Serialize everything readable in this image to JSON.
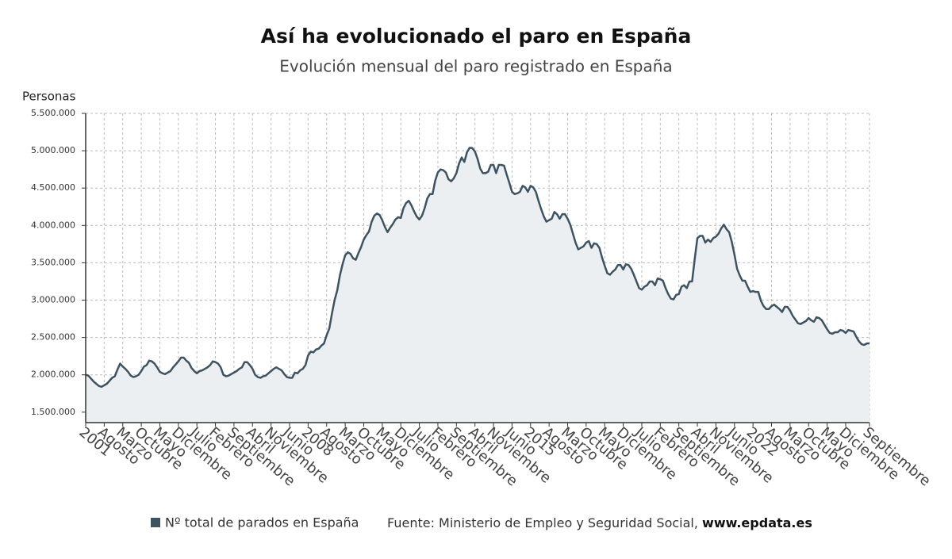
{
  "chart_data": {
    "type": "line",
    "title": "Así ha evolucionado el paro en España",
    "subtitle": "Evolución mensual del paro registrado en España",
    "y_label": "Personas",
    "source": "Fuente: Ministerio de Empleo y Seguridad Social,",
    "source_link": "www.epdata.es",
    "grid": true,
    "ylim": [
      1360000,
      5500000
    ],
    "yticks": [
      {
        "value": 1500000,
        "label": "1.500.000"
      },
      {
        "value": 2000000,
        "label": "2.000.000"
      },
      {
        "value": 2500000,
        "label": "2.500.000"
      },
      {
        "value": 3000000,
        "label": "3.000.000"
      },
      {
        "value": 3500000,
        "label": "3.500.000"
      },
      {
        "value": 4000000,
        "label": "4.000.000"
      },
      {
        "value": 4500000,
        "label": "4.500.000"
      },
      {
        "value": 5000000,
        "label": "5.000.000"
      },
      {
        "value": 5500000,
        "label": "5.500.000"
      }
    ],
    "categories": [
      "2001",
      null,
      null,
      null,
      null,
      null,
      null,
      "Agosto",
      null,
      null,
      null,
      null,
      null,
      null,
      "Marzo",
      null,
      null,
      null,
      null,
      null,
      null,
      "Octubre",
      null,
      null,
      null,
      null,
      null,
      null,
      "Mayo",
      null,
      null,
      null,
      null,
      null,
      null,
      "Diciembre",
      null,
      null,
      null,
      null,
      null,
      null,
      "Julio",
      null,
      null,
      null,
      null,
      null,
      null,
      "Febrero",
      null,
      null,
      null,
      null,
      null,
      null,
      "Septiembre",
      null,
      null,
      null,
      null,
      null,
      null,
      "Abril",
      null,
      null,
      null,
      null,
      null,
      null,
      "Noviembre",
      null,
      null,
      null,
      null,
      null,
      null,
      "Junio",
      null,
      null,
      null,
      null,
      null,
      null,
      "2008",
      null,
      null,
      null,
      null,
      null,
      null,
      "Agosto",
      null,
      null,
      null,
      null,
      null,
      null,
      "Marzo",
      null,
      null,
      null,
      null,
      null,
      null,
      "Octubre",
      null,
      null,
      null,
      null,
      null,
      null,
      "Mayo",
      null,
      null,
      null,
      null,
      null,
      null,
      "Diciembre",
      null,
      null,
      null,
      null,
      null,
      null,
      "Julio",
      null,
      null,
      null,
      null,
      null,
      null,
      "Febrero",
      null,
      null,
      null,
      null,
      null,
      null,
      "Septiembre",
      null,
      null,
      null,
      null,
      null,
      null,
      "Abril",
      null,
      null,
      null,
      null,
      null,
      null,
      "Noviembre",
      null,
      null,
      null,
      null,
      null,
      null,
      "Junio",
      null,
      null,
      null,
      null,
      null,
      null,
      "2015",
      null,
      null,
      null,
      null,
      null,
      null,
      "Agosto",
      null,
      null,
      null,
      null,
      null,
      null,
      "Marzo",
      null,
      null,
      null,
      null,
      null,
      null,
      "Octubre",
      null,
      null,
      null,
      null,
      null,
      null,
      "Mayo",
      null,
      null,
      null,
      null,
      null,
      null,
      "Diciembre",
      null,
      null,
      null,
      null,
      null,
      null,
      "Julio",
      null,
      null,
      null,
      null,
      null,
      null,
      "Febrero",
      null,
      null,
      null,
      null,
      null,
      null,
      "Septiembre",
      null,
      null,
      null,
      null,
      null,
      null,
      "Abril",
      null,
      null,
      null,
      null,
      null,
      null,
      "Noviembre",
      null,
      null,
      null,
      null,
      null,
      null,
      "Junio",
      null,
      null,
      null,
      null,
      null,
      null,
      "2022",
      null,
      null,
      null,
      null,
      null,
      null,
      "Agosto",
      null,
      null,
      null,
      null,
      null,
      null,
      "Marzo",
      null,
      null,
      null,
      null,
      null,
      null,
      "Octubre",
      null,
      null,
      null,
      null,
      null,
      null,
      "Mayo",
      null,
      null,
      null,
      null,
      null,
      null,
      "Diciembre",
      null,
      null,
      null,
      null,
      null,
      null,
      null,
      null,
      "Septiembre"
    ],
    "series": [
      {
        "name": "Nº total de parados en España",
        "color": "#3d5361",
        "values": [
          2000000,
          1990000,
          1950000,
          1910000,
          1880000,
          1850000,
          1840000,
          1860000,
          1880000,
          1920000,
          1960000,
          1980000,
          2070000,
          2150000,
          2110000,
          2080000,
          2040000,
          1990000,
          1970000,
          1980000,
          2000000,
          2050000,
          2110000,
          2130000,
          2190000,
          2180000,
          2150000,
          2100000,
          2040000,
          2020000,
          2010000,
          2030000,
          2050000,
          2100000,
          2140000,
          2180000,
          2230000,
          2230000,
          2190000,
          2160000,
          2090000,
          2050000,
          2020000,
          2050000,
          2060000,
          2080000,
          2100000,
          2130000,
          2180000,
          2170000,
          2150000,
          2100000,
          2000000,
          1980000,
          1990000,
          2010000,
          2030000,
          2050000,
          2080000,
          2100000,
          2170000,
          2170000,
          2130000,
          2080000,
          2000000,
          1970000,
          1960000,
          1980000,
          1990000,
          2020000,
          2050000,
          2080000,
          2100000,
          2080000,
          2060000,
          2010000,
          1970000,
          1960000,
          1960000,
          2030000,
          2020000,
          2060000,
          2080000,
          2130000,
          2260000,
          2310000,
          2300000,
          2340000,
          2350000,
          2390000,
          2420000,
          2530000,
          2620000,
          2820000,
          3000000,
          3130000,
          3330000,
          3480000,
          3600000,
          3640000,
          3620000,
          3560000,
          3540000,
          3630000,
          3710000,
          3810000,
          3870000,
          3920000,
          4050000,
          4130000,
          4160000,
          4140000,
          4070000,
          3980000,
          3910000,
          3970000,
          4020000,
          4080000,
          4110000,
          4100000,
          4230000,
          4300000,
          4330000,
          4270000,
          4190000,
          4120000,
          4080000,
          4130000,
          4230000,
          4360000,
          4420000,
          4420000,
          4600000,
          4710000,
          4750000,
          4740000,
          4710000,
          4620000,
          4590000,
          4630000,
          4700000,
          4830000,
          4910000,
          4850000,
          4980000,
          5040000,
          5035000,
          4990000,
          4890000,
          4760000,
          4700000,
          4700000,
          4720000,
          4810000,
          4810000,
          4700000,
          4810000,
          4810000,
          4800000,
          4680000,
          4570000,
          4450000,
          4420000,
          4430000,
          4450000,
          4530000,
          4510000,
          4450000,
          4530000,
          4510000,
          4450000,
          4330000,
          4220000,
          4120000,
          4050000,
          4070000,
          4090000,
          4180000,
          4150000,
          4090000,
          4150000,
          4150000,
          4090000,
          4010000,
          3890000,
          3770000,
          3680000,
          3700000,
          3720000,
          3770000,
          3790000,
          3700000,
          3760000,
          3750000,
          3700000,
          3570000,
          3460000,
          3360000,
          3340000,
          3380000,
          3410000,
          3470000,
          3470000,
          3410000,
          3480000,
          3470000,
          3420000,
          3340000,
          3250000,
          3160000,
          3140000,
          3180000,
          3200000,
          3250000,
          3250000,
          3200000,
          3290000,
          3280000,
          3260000,
          3160000,
          3080000,
          3020000,
          3010000,
          3070000,
          3080000,
          3180000,
          3200000,
          3160000,
          3250000,
          3250000,
          3550000,
          3830000,
          3860000,
          3860000,
          3770000,
          3810000,
          3780000,
          3830000,
          3850000,
          3890000,
          3960000,
          4010000,
          3950000,
          3910000,
          3780000,
          3610000,
          3420000,
          3330000,
          3260000,
          3260000,
          3180000,
          3110000,
          3120000,
          3110000,
          3110000,
          2990000,
          2920000,
          2880000,
          2880000,
          2920000,
          2940000,
          2910000,
          2880000,
          2840000,
          2910000,
          2910000,
          2860000,
          2790000,
          2740000,
          2690000,
          2680000,
          2700000,
          2720000,
          2760000,
          2730000,
          2710000,
          2770000,
          2760000,
          2730000,
          2670000,
          2610000,
          2560000,
          2550000,
          2570000,
          2570000,
          2600000,
          2590000,
          2560000,
          2600000,
          2590000,
          2580000,
          2510000,
          2450000,
          2410000,
          2400000,
          2420000,
          2420000
        ]
      }
    ]
  }
}
